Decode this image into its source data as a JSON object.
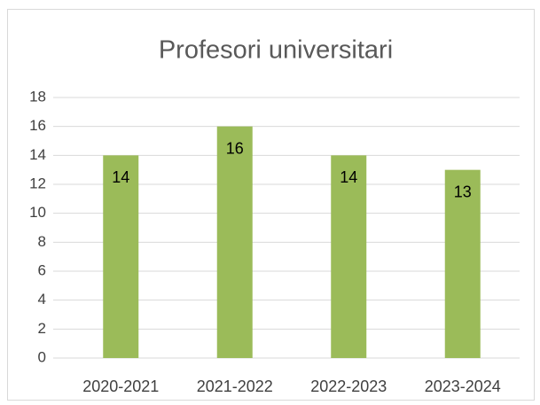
{
  "chart_data": {
    "type": "bar",
    "title": "Profesori universitari",
    "categories": [
      "2020-2021",
      "2021-2022",
      "2022-2023",
      "2023-2024"
    ],
    "values": [
      14,
      16,
      14,
      13
    ],
    "color": "#9bbb59",
    "ylim": [
      0,
      18
    ],
    "yticks": [
      0,
      2,
      4,
      6,
      8,
      10,
      12,
      14,
      16,
      18
    ],
    "grid": true
  }
}
